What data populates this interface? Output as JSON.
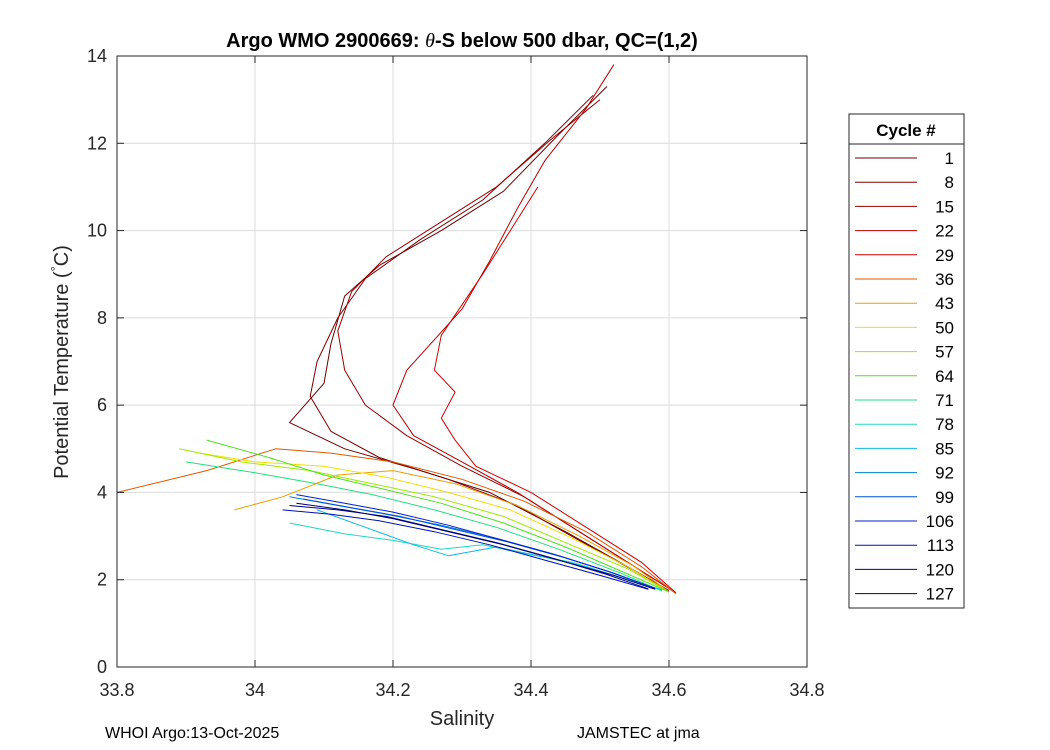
{
  "chart_data": {
    "type": "line",
    "title_prefix": "Argo WMO 2900669: ",
    "title_theta": "θ",
    "title_suffix": "-S below 500 dbar,  QC=(1,2)",
    "xlabel": "Salinity",
    "ylabel_main": "Potential Temperature (",
    "ylabel_deg": "°",
    "ylabel_end": "C)",
    "xlim": [
      33.8,
      34.8
    ],
    "ylim": [
      0,
      14
    ],
    "xticks": [
      33.8,
      34,
      34.2,
      34.4,
      34.6,
      34.8
    ],
    "xtick_labels": [
      "33.8",
      "34",
      "34.2",
      "34.4",
      "34.6",
      "34.8"
    ],
    "yticks": [
      0,
      2,
      4,
      6,
      8,
      10,
      12,
      14
    ],
    "ytick_labels": [
      "0",
      "2",
      "4",
      "6",
      "8",
      "10",
      "12",
      "14"
    ],
    "grid": true,
    "legend_title": "Cycle #",
    "legend_position": "right",
    "series": [
      {
        "name": "1",
        "color": "#6e0000",
        "points": [
          [
            34.51,
            13.3
          ],
          [
            34.44,
            12.2
          ],
          [
            34.36,
            10.9
          ],
          [
            34.27,
            10.0
          ],
          [
            34.18,
            9.2
          ],
          [
            34.13,
            8.5
          ],
          [
            34.11,
            7.4
          ],
          [
            34.1,
            6.5
          ],
          [
            34.05,
            5.6
          ],
          [
            34.13,
            5.0
          ],
          [
            34.24,
            4.5
          ],
          [
            34.34,
            4.0
          ],
          [
            34.45,
            3.1
          ],
          [
            34.54,
            2.3
          ],
          [
            34.6,
            1.75
          ]
        ]
      },
      {
        "name": "8",
        "color": "#7e0000",
        "points": [
          [
            34.49,
            13.1
          ],
          [
            34.42,
            12.0
          ],
          [
            34.33,
            10.7
          ],
          [
            34.24,
            9.8
          ],
          [
            34.16,
            8.9
          ],
          [
            34.12,
            8.0
          ],
          [
            34.09,
            7.0
          ],
          [
            34.08,
            6.2
          ],
          [
            34.11,
            5.4
          ],
          [
            34.18,
            4.8
          ],
          [
            34.28,
            4.3
          ],
          [
            34.38,
            3.7
          ],
          [
            34.47,
            2.9
          ],
          [
            34.55,
            2.2
          ],
          [
            34.6,
            1.72
          ]
        ]
      },
      {
        "name": "15",
        "color": "#950000",
        "points": [
          [
            34.5,
            13.0
          ],
          [
            34.43,
            12.1
          ],
          [
            34.35,
            11.0
          ],
          [
            34.26,
            10.1
          ],
          [
            34.19,
            9.4
          ],
          [
            34.14,
            8.6
          ],
          [
            34.12,
            7.7
          ],
          [
            34.13,
            6.8
          ],
          [
            34.16,
            6.0
          ],
          [
            34.22,
            5.3
          ],
          [
            34.3,
            4.6
          ],
          [
            34.39,
            3.9
          ],
          [
            34.48,
            3.0
          ],
          [
            34.56,
            2.2
          ],
          [
            34.61,
            1.7
          ]
        ]
      },
      {
        "name": "22",
        "color": "#b40000",
        "points": [
          [
            34.52,
            13.8
          ],
          [
            34.48,
            12.8
          ],
          [
            34.42,
            11.6
          ],
          [
            34.38,
            10.5
          ],
          [
            34.34,
            9.3
          ],
          [
            34.3,
            8.2
          ],
          [
            34.26,
            7.5
          ],
          [
            34.22,
            6.8
          ],
          [
            34.2,
            6.0
          ],
          [
            34.23,
            5.3
          ],
          [
            34.3,
            4.7
          ],
          [
            34.38,
            4.0
          ],
          [
            34.47,
            3.1
          ],
          [
            34.55,
            2.3
          ],
          [
            34.61,
            1.7
          ]
        ]
      },
      {
        "name": "29",
        "color": "#d20000",
        "points": [
          [
            34.41,
            11.0
          ],
          [
            34.37,
            10.0
          ],
          [
            34.33,
            9.0
          ],
          [
            34.3,
            8.3
          ],
          [
            34.27,
            7.6
          ],
          [
            34.26,
            6.8
          ],
          [
            34.29,
            6.3
          ],
          [
            34.27,
            5.7
          ],
          [
            34.29,
            5.2
          ],
          [
            34.32,
            4.6
          ],
          [
            34.4,
            4.0
          ],
          [
            34.48,
            3.2
          ],
          [
            34.56,
            2.4
          ],
          [
            34.61,
            1.7
          ]
        ]
      },
      {
        "name": "36",
        "color": "#e05a00",
        "points": [
          [
            33.8,
            4.0
          ],
          [
            33.93,
            4.5
          ],
          [
            34.03,
            5.0
          ],
          [
            34.11,
            4.9
          ],
          [
            34.2,
            4.7
          ],
          [
            34.3,
            4.3
          ],
          [
            34.39,
            3.8
          ],
          [
            34.48,
            3.1
          ],
          [
            34.56,
            2.3
          ],
          [
            34.61,
            1.68
          ]
        ]
      },
      {
        "name": "43",
        "color": "#e8a000",
        "points": [
          [
            33.97,
            3.6
          ],
          [
            34.04,
            3.9
          ],
          [
            34.12,
            4.4
          ],
          [
            34.2,
            4.5
          ],
          [
            34.29,
            4.2
          ],
          [
            34.38,
            3.7
          ],
          [
            34.47,
            3.0
          ],
          [
            34.55,
            2.3
          ],
          [
            34.6,
            1.72
          ]
        ]
      },
      {
        "name": "50",
        "color": "#f0e000",
        "points": [
          [
            33.92,
            4.9
          ],
          [
            34.0,
            4.7
          ],
          [
            34.1,
            4.6
          ],
          [
            34.19,
            4.35
          ],
          [
            34.28,
            4.0
          ],
          [
            34.37,
            3.6
          ],
          [
            34.46,
            2.95
          ],
          [
            34.54,
            2.3
          ],
          [
            34.6,
            1.72
          ]
        ]
      },
      {
        "name": "57",
        "color": "#a0e800",
        "points": [
          [
            33.89,
            5.0
          ],
          [
            33.98,
            4.7
          ],
          [
            34.08,
            4.5
          ],
          [
            34.17,
            4.2
          ],
          [
            34.26,
            3.9
          ],
          [
            34.36,
            3.45
          ],
          [
            34.45,
            2.85
          ],
          [
            34.54,
            2.25
          ],
          [
            34.6,
            1.72
          ]
        ]
      },
      {
        "name": "64",
        "color": "#50e020",
        "points": [
          [
            33.93,
            5.2
          ],
          [
            34.02,
            4.8
          ],
          [
            34.1,
            4.4
          ],
          [
            34.18,
            4.1
          ],
          [
            34.27,
            3.75
          ],
          [
            34.36,
            3.3
          ],
          [
            34.45,
            2.75
          ],
          [
            34.53,
            2.2
          ],
          [
            34.6,
            1.72
          ]
        ]
      },
      {
        "name": "71",
        "color": "#20e080",
        "points": [
          [
            33.9,
            4.7
          ],
          [
            34.0,
            4.45
          ],
          [
            34.09,
            4.2
          ],
          [
            34.17,
            3.95
          ],
          [
            34.26,
            3.6
          ],
          [
            34.35,
            3.2
          ],
          [
            34.44,
            2.7
          ],
          [
            34.53,
            2.15
          ],
          [
            34.59,
            1.74
          ]
        ]
      },
      {
        "name": "78",
        "color": "#20d8c0",
        "points": [
          [
            34.05,
            3.3
          ],
          [
            34.13,
            3.05
          ],
          [
            34.2,
            2.9
          ],
          [
            34.27,
            2.7
          ],
          [
            34.33,
            2.8
          ],
          [
            34.39,
            2.6
          ],
          [
            34.46,
            2.4
          ],
          [
            34.53,
            2.05
          ],
          [
            34.59,
            1.76
          ]
        ]
      },
      {
        "name": "85",
        "color": "#10b8e8",
        "points": [
          [
            34.09,
            3.6
          ],
          [
            34.16,
            3.2
          ],
          [
            34.23,
            2.8
          ],
          [
            34.28,
            2.55
          ],
          [
            34.35,
            2.75
          ],
          [
            34.41,
            2.55
          ],
          [
            34.48,
            2.3
          ],
          [
            34.54,
            2.0
          ],
          [
            34.59,
            1.77
          ]
        ]
      },
      {
        "name": "92",
        "color": "#0080d0",
        "points": [
          [
            34.05,
            3.9
          ],
          [
            34.12,
            3.7
          ],
          [
            34.19,
            3.5
          ],
          [
            34.27,
            3.25
          ],
          [
            34.35,
            2.95
          ],
          [
            34.43,
            2.6
          ],
          [
            34.51,
            2.2
          ],
          [
            34.58,
            1.8
          ]
        ]
      },
      {
        "name": "99",
        "color": "#0050e0",
        "points": [
          [
            34.07,
            3.85
          ],
          [
            34.14,
            3.65
          ],
          [
            34.21,
            3.45
          ],
          [
            34.29,
            3.15
          ],
          [
            34.37,
            2.85
          ],
          [
            34.45,
            2.5
          ],
          [
            34.52,
            2.15
          ],
          [
            34.58,
            1.8
          ]
        ]
      },
      {
        "name": "106",
        "color": "#0020d0",
        "points": [
          [
            34.06,
            3.95
          ],
          [
            34.13,
            3.75
          ],
          [
            34.2,
            3.55
          ],
          [
            34.28,
            3.25
          ],
          [
            34.36,
            2.9
          ],
          [
            34.44,
            2.55
          ],
          [
            34.52,
            2.15
          ],
          [
            34.58,
            1.8
          ]
        ]
      },
      {
        "name": "113",
        "color": "#0010b0",
        "points": [
          [
            34.04,
            3.6
          ],
          [
            34.11,
            3.5
          ],
          [
            34.18,
            3.35
          ],
          [
            34.26,
            3.1
          ],
          [
            34.34,
            2.8
          ],
          [
            34.42,
            2.45
          ],
          [
            34.5,
            2.1
          ],
          [
            34.57,
            1.78
          ]
        ]
      },
      {
        "name": "120",
        "color": "#000090",
        "points": [
          [
            34.05,
            3.7
          ],
          [
            34.12,
            3.6
          ],
          [
            34.19,
            3.45
          ],
          [
            34.27,
            3.15
          ],
          [
            34.35,
            2.85
          ],
          [
            34.43,
            2.5
          ],
          [
            34.51,
            2.12
          ],
          [
            34.57,
            1.79
          ]
        ]
      },
      {
        "name": "127",
        "color": "#000070",
        "points": [
          [
            34.06,
            3.75
          ],
          [
            34.13,
            3.6
          ],
          [
            34.2,
            3.4
          ],
          [
            34.28,
            3.1
          ],
          [
            34.36,
            2.8
          ],
          [
            34.44,
            2.45
          ],
          [
            34.52,
            2.1
          ],
          [
            34.58,
            1.78
          ]
        ]
      }
    ]
  },
  "footer": {
    "left": "WHOI Argo:13-Oct-2025",
    "right": "JAMSTEC at jma"
  }
}
